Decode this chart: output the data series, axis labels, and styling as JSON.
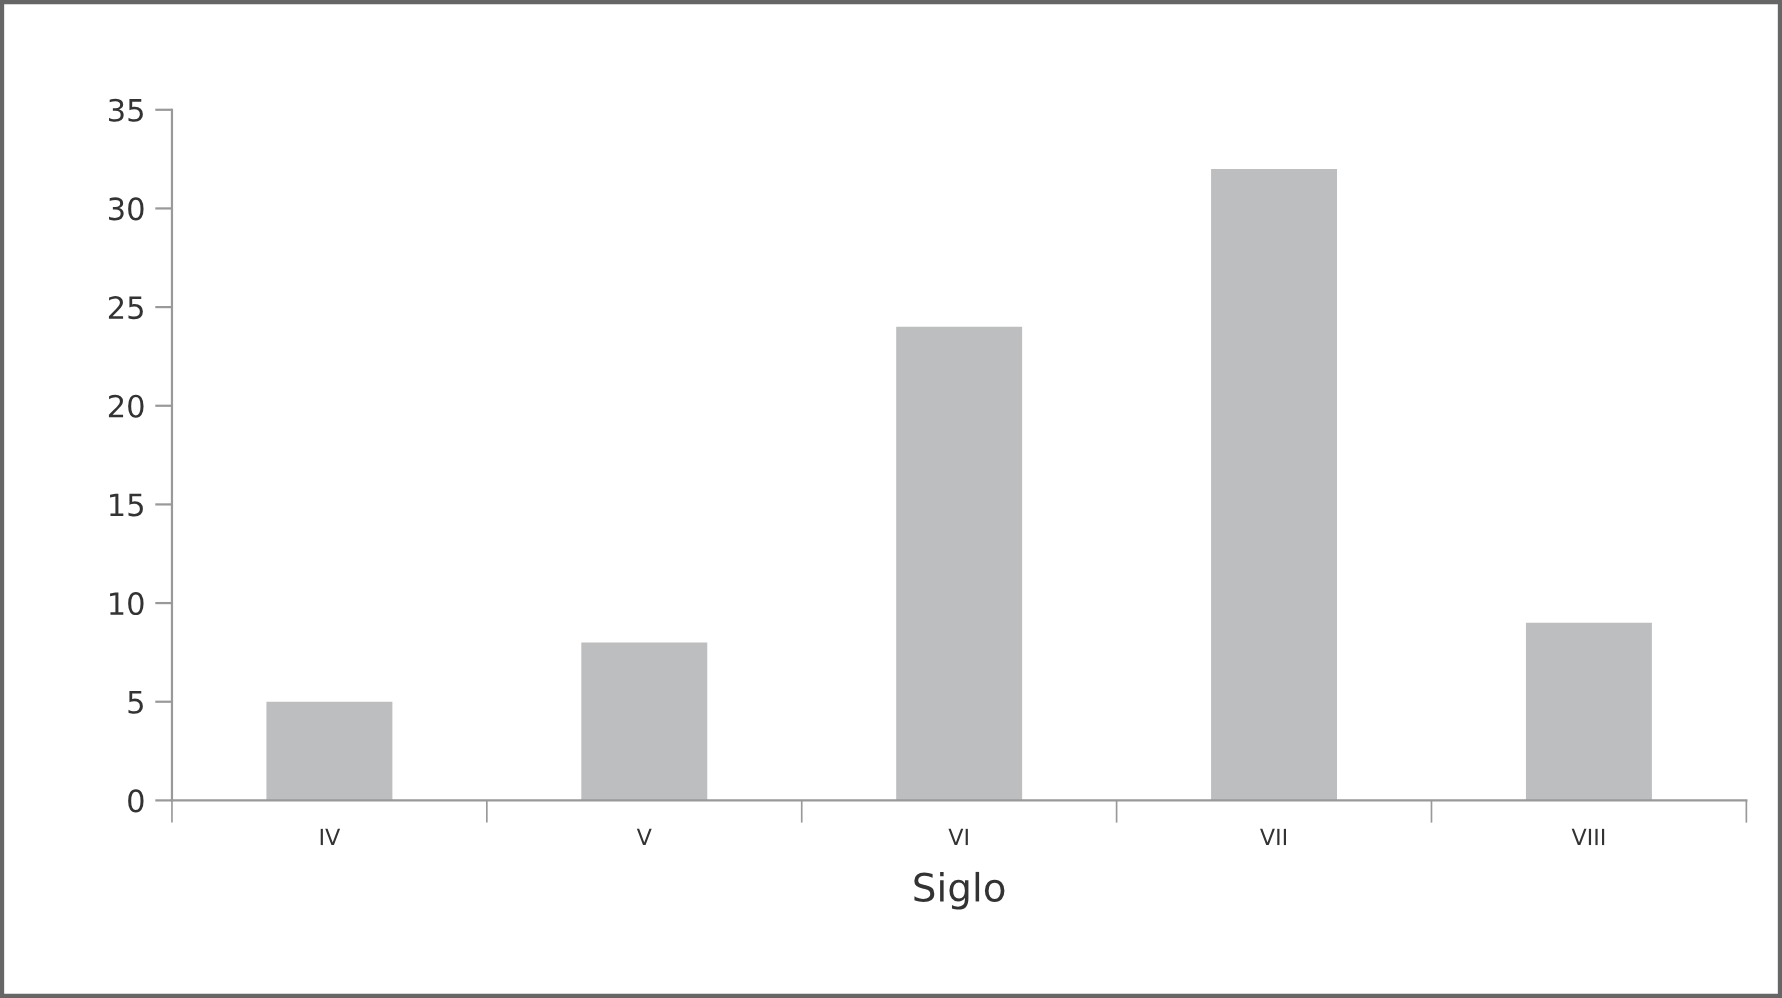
{
  "chart_data": {
    "type": "bar",
    "xlabel": "Siglo",
    "categories": [
      "IV",
      "V",
      "VI",
      "VII",
      "VIII"
    ],
    "values": [
      5,
      8,
      24,
      32,
      9
    ],
    "color": "#bdbec0",
    "ylim": [
      0,
      35
    ],
    "yticks": [
      0,
      5,
      10,
      15,
      20,
      25,
      30,
      35
    ],
    "grid": false
  }
}
